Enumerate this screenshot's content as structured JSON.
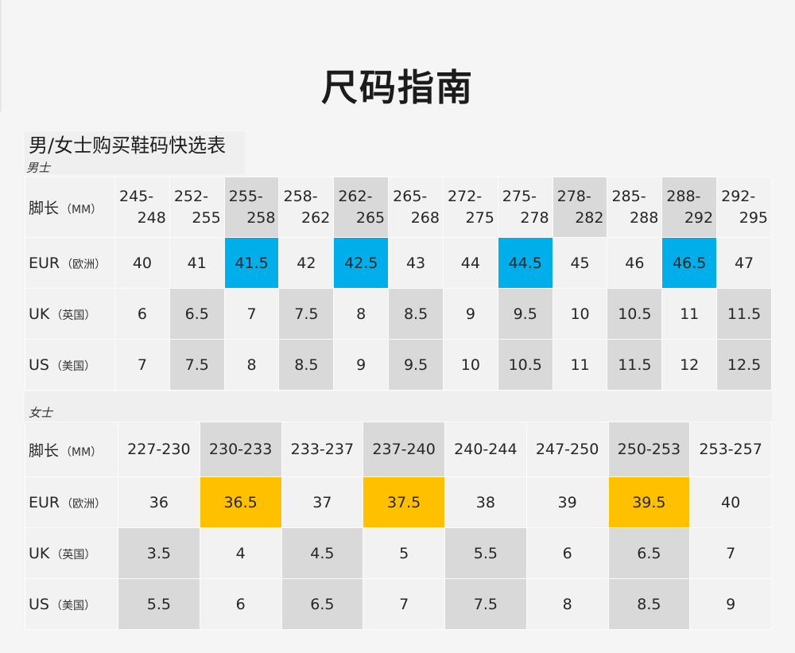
{
  "title": "尺码指南",
  "quick_select_title": "男/女士购买鞋码快选表",
  "colors": {
    "highlight_blue": "#00aeea",
    "highlight_yellow": "#ffc000",
    "alt_gray": "#d9d9d9",
    "cell_bg": "#f2f2f2"
  },
  "men": {
    "section_label": "男士",
    "rows": {
      "length": {
        "label": "脚长",
        "sub": "（MM）"
      },
      "eur": {
        "label": "EUR",
        "sub": "（欧洲）"
      },
      "uk": {
        "label": "UK",
        "sub": "（英国）"
      },
      "us": {
        "label": "US",
        "sub": "（美国）"
      }
    },
    "lengths": [
      [
        "245-",
        "248"
      ],
      [
        "252-",
        "255"
      ],
      [
        "255-",
        "258"
      ],
      [
        "258-",
        "262"
      ],
      [
        "262-",
        "265"
      ],
      [
        "265-",
        "268"
      ],
      [
        "272-",
        "275"
      ],
      [
        "275-",
        "278"
      ],
      [
        "278-",
        "282"
      ],
      [
        "285-",
        "288"
      ],
      [
        "288-",
        "292"
      ],
      [
        "292-",
        "295"
      ]
    ],
    "eur": [
      "40",
      "41",
      "41.5",
      "42",
      "42.5",
      "43",
      "44",
      "44.5",
      "45",
      "46",
      "46.5",
      "47"
    ],
    "uk": [
      "6",
      "6.5",
      "7",
      "7.5",
      "8",
      "8.5",
      "9",
      "9.5",
      "10",
      "10.5",
      "11",
      "11.5"
    ],
    "us": [
      "7",
      "7.5",
      "8",
      "8.5",
      "9",
      "9.5",
      "10",
      "10.5",
      "11",
      "11.5",
      "12",
      "12.5"
    ]
  },
  "women": {
    "section_label": "女士",
    "rows": {
      "length": {
        "label": "脚长",
        "sub": "（MM）"
      },
      "eur": {
        "label": "EUR",
        "sub": "（欧洲）"
      },
      "uk": {
        "label": "UK",
        "sub": "（英国）"
      },
      "us": {
        "label": "US",
        "sub": "（美国）"
      }
    },
    "lengths": [
      "227-230",
      "230-233",
      "233-237",
      "237-240",
      "240-244",
      "247-250",
      "250-253",
      "253-257"
    ],
    "eur": [
      "36",
      "36.5",
      "37",
      "37.5",
      "38",
      "39",
      "39.5",
      "40"
    ],
    "uk": [
      "3.5",
      "4",
      "4.5",
      "5",
      "5.5",
      "6",
      "6.5",
      "7"
    ],
    "us": [
      "5.5",
      "6",
      "6.5",
      "7",
      "7.5",
      "8",
      "8.5",
      "9"
    ]
  }
}
